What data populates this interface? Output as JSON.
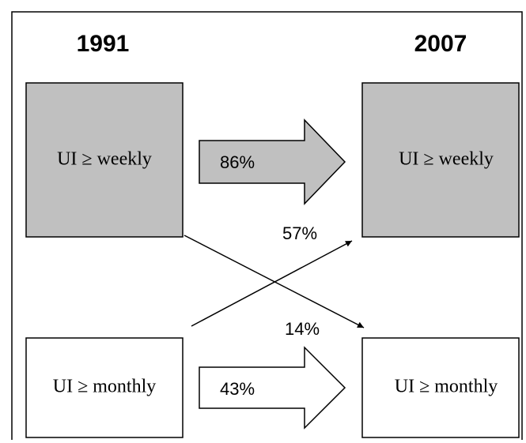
{
  "headers": {
    "left": "1991",
    "right": "2007"
  },
  "boxes": [
    {
      "label": "UI ≥ weekly"
    },
    {
      "label": "UI ≥ weekly"
    },
    {
      "label": "UI ≥ monthly"
    },
    {
      "label": "UI ≥ monthly"
    }
  ],
  "transitions": [
    {
      "label": "86%"
    },
    {
      "label": "57%"
    },
    {
      "label": "14%"
    },
    {
      "label": "43%"
    }
  ]
}
